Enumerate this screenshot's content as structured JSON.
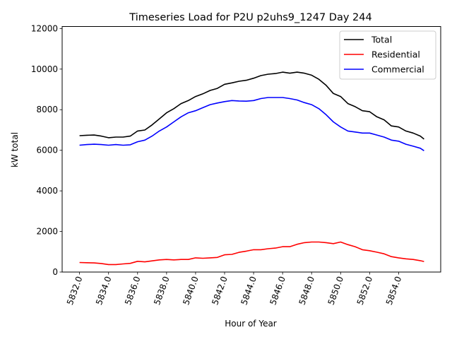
{
  "chart_data": {
    "type": "line",
    "title": "Timeseries Load for P2U p2uhs9_1247  Day 244",
    "xlabel": "Hour of Year",
    "ylabel": "kW total",
    "xlim": [
      5830.8,
      5856.9
    ],
    "ylim": [
      0,
      12100
    ],
    "xticks": [
      5832,
      5834,
      5836,
      5838,
      5840,
      5842,
      5844,
      5846,
      5848,
      5850,
      5852,
      5854
    ],
    "xtick_labels": [
      "5832.0",
      "5834.0",
      "5836.0",
      "5838.0",
      "5840.0",
      "5842.0",
      "5844.0",
      "5846.0",
      "5848.0",
      "5850.0",
      "5852.0",
      "5854.0"
    ],
    "yticks": [
      0,
      2000,
      4000,
      6000,
      8000,
      10000,
      12000
    ],
    "ytick_labels": [
      "0",
      "2000",
      "4000",
      "6000",
      "8000",
      "10000",
      "12000"
    ],
    "grid": false,
    "legend_placement": "top-right",
    "x": [
      5832,
      5832.5,
      5833,
      5833.5,
      5834,
      5834.5,
      5835,
      5835.5,
      5836,
      5836.5,
      5837,
      5837.5,
      5838,
      5838.5,
      5839,
      5839.5,
      5840,
      5840.5,
      5841,
      5841.5,
      5842,
      5842.5,
      5843,
      5843.5,
      5844,
      5844.5,
      5845,
      5845.5,
      5846,
      5846.5,
      5847,
      5847.5,
      5848,
      5848.5,
      5849,
      5849.5,
      5850,
      5850.5,
      5851,
      5851.5,
      5852,
      5852.5,
      5853,
      5853.5,
      5854,
      5854.5,
      5855,
      5855.5,
      5855.75
    ],
    "series": [
      {
        "name": "Total",
        "color": "#000000",
        "values": [
          6720,
          6740,
          6750,
          6700,
          6620,
          6650,
          6650,
          6700,
          6950,
          7000,
          7250,
          7550,
          7850,
          8050,
          8300,
          8450,
          8650,
          8780,
          8950,
          9050,
          9250,
          9320,
          9400,
          9450,
          9550,
          9680,
          9750,
          9780,
          9850,
          9800,
          9850,
          9800,
          9700,
          9500,
          9200,
          8800,
          8650,
          8300,
          8150,
          7950,
          7900,
          7650,
          7500,
          7200,
          7150,
          6950,
          6850,
          6700,
          6550
        ]
      },
      {
        "name": "Residential",
        "color": "#ff0000",
        "values": [
          470,
          460,
          450,
          420,
          370,
          370,
          400,
          430,
          530,
          500,
          550,
          600,
          620,
          600,
          620,
          620,
          700,
          680,
          700,
          720,
          850,
          870,
          970,
          1030,
          1100,
          1100,
          1150,
          1180,
          1250,
          1250,
          1370,
          1450,
          1480,
          1480,
          1450,
          1400,
          1480,
          1350,
          1250,
          1100,
          1050,
          980,
          900,
          760,
          700,
          650,
          620,
          560,
          520
        ]
      },
      {
        "name": "Commercial",
        "color": "#0000ff",
        "values": [
          6250,
          6280,
          6300,
          6280,
          6250,
          6280,
          6250,
          6270,
          6420,
          6500,
          6700,
          6950,
          7150,
          7400,
          7650,
          7850,
          7950,
          8100,
          8250,
          8330,
          8400,
          8450,
          8430,
          8420,
          8450,
          8550,
          8600,
          8600,
          8600,
          8550,
          8480,
          8350,
          8250,
          8050,
          7750,
          7400,
          7150,
          6950,
          6900,
          6850,
          6850,
          6750,
          6650,
          6500,
          6450,
          6300,
          6200,
          6100,
          5980
        ]
      }
    ]
  }
}
